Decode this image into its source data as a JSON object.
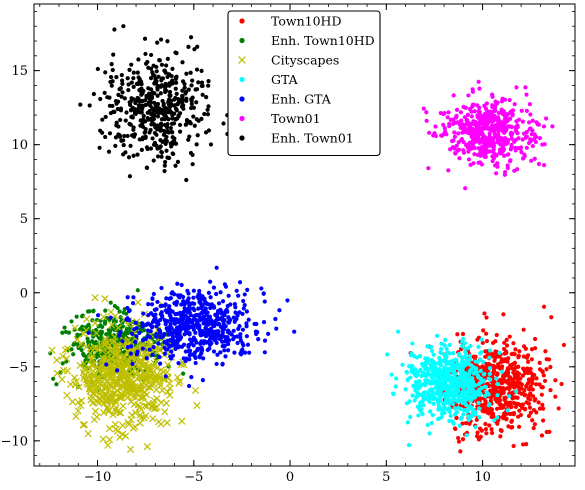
{
  "chart_data": {
    "type": "scatter",
    "title": "",
    "xlabel": "",
    "ylabel": "",
    "xlim": [
      -13.3,
      14.8
    ],
    "ylim": [
      -11.7,
      19.5
    ],
    "x_ticks": [
      -10,
      -5,
      0,
      5,
      10
    ],
    "y_ticks": [
      -10,
      -5,
      0,
      5,
      10,
      15
    ],
    "x_tick_labels": [
      "−10",
      "−5",
      "0",
      "5",
      "10"
    ],
    "y_tick_labels": [
      "−10",
      "−5",
      "0",
      "5",
      "10",
      "15"
    ],
    "grid": false,
    "legend_position": "top-center",
    "series": [
      {
        "name": "Town10HD",
        "color": "#ff0000",
        "marker": "dot",
        "center": [
          10.6,
          -6.3
        ],
        "spread": [
          1.25,
          1.55
        ],
        "n": 650,
        "seed": 11
      },
      {
        "name": "Enh. Town10HD",
        "color": "#008000",
        "marker": "dot",
        "center": [
          -9.3,
          -3.6
        ],
        "spread": [
          1.1,
          1.15
        ],
        "n": 380,
        "seed": 23
      },
      {
        "name": "Cityscapes",
        "color": "#bfbf00",
        "marker": "x",
        "center": [
          -8.6,
          -5.6
        ],
        "spread": [
          1.3,
          1.7
        ],
        "n": 520,
        "seed": 37
      },
      {
        "name": "GTA",
        "color": "#00ffff",
        "marker": "dot",
        "center": [
          8.3,
          -6.1
        ],
        "spread": [
          1.05,
          1.25
        ],
        "n": 620,
        "seed": 41
      },
      {
        "name": "Enh. GTA",
        "color": "#0000ff",
        "marker": "dot",
        "center": [
          -5.0,
          -2.2
        ],
        "spread": [
          1.6,
          1.2
        ],
        "n": 600,
        "seed": 53
      },
      {
        "name": "Town01",
        "color": "#ff00ff",
        "marker": "dot",
        "center": [
          10.3,
          10.9
        ],
        "spread": [
          1.25,
          1.05
        ],
        "n": 480,
        "seed": 67
      },
      {
        "name": "Enh. Town01",
        "color": "#000000",
        "marker": "dot",
        "center": [
          -7.0,
          12.5
        ],
        "spread": [
          1.35,
          1.8
        ],
        "n": 480,
        "seed": 79
      }
    ]
  }
}
